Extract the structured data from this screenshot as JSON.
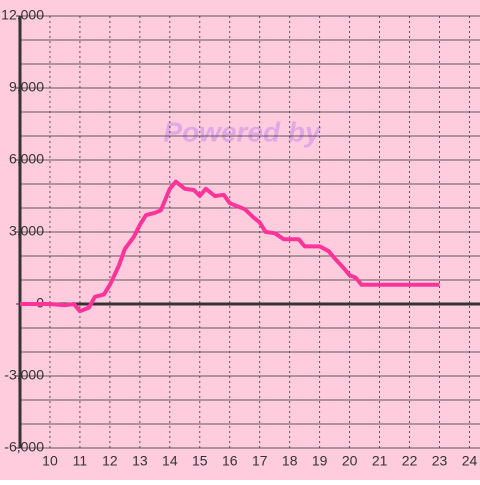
{
  "chart_data": {
    "type": "line",
    "watermark": "Powered by",
    "x": [
      9,
      10,
      10.5,
      10.8,
      11,
      11.3,
      11.5,
      11.8,
      12,
      12.3,
      12.5,
      12.8,
      13,
      13.2,
      13.5,
      13.7,
      14,
      14.2,
      14.5,
      14.8,
      15,
      15.2,
      15.5,
      15.8,
      16,
      16.3,
      16.5,
      16.8,
      17,
      17.2,
      17.5,
      17.8,
      18,
      18.3,
      18.5,
      19,
      19.3,
      19.5,
      19.8,
      20,
      20.2,
      20.4,
      21,
      22,
      23
    ],
    "series": [
      {
        "color": "#ff3399",
        "values": [
          0,
          0,
          -50,
          0,
          -300,
          -150,
          300,
          400,
          800,
          1600,
          2300,
          2800,
          3300,
          3700,
          3800,
          3900,
          4800,
          5100,
          4800,
          4750,
          4500,
          4800,
          4500,
          4550,
          4200,
          4050,
          3950,
          3600,
          3400,
          3000,
          2950,
          2700,
          2700,
          2700,
          2400,
          2400,
          2200,
          1900,
          1500,
          1200,
          1100,
          800,
          800,
          800,
          800
        ]
      }
    ],
    "xlim": [
      9,
      24.35
    ],
    "xticks": [
      10,
      11,
      12,
      13,
      14,
      15,
      16,
      17,
      18,
      19,
      20,
      21,
      22,
      23,
      24
    ],
    "ylim": [
      -6000,
      12000
    ],
    "yticks": [
      {
        "value": -6000,
        "label": "-6,000"
      },
      {
        "value": -3000,
        "label": "-3,000"
      },
      0,
      {
        "value": 3000,
        "label": "3,000"
      },
      {
        "value": 6000,
        "label": "6,000"
      },
      {
        "value": 9000,
        "label": "9,000"
      },
      {
        "value": 12000,
        "label": "12,000"
      }
    ],
    "ygrid": [
      -6000,
      -5000,
      -4000,
      -3000,
      -2000,
      -1000,
      1000,
      2000,
      3000,
      4000,
      5000,
      6000,
      7000,
      8000,
      9000,
      10000,
      11000,
      12000
    ],
    "background": "#ffccdd"
  }
}
